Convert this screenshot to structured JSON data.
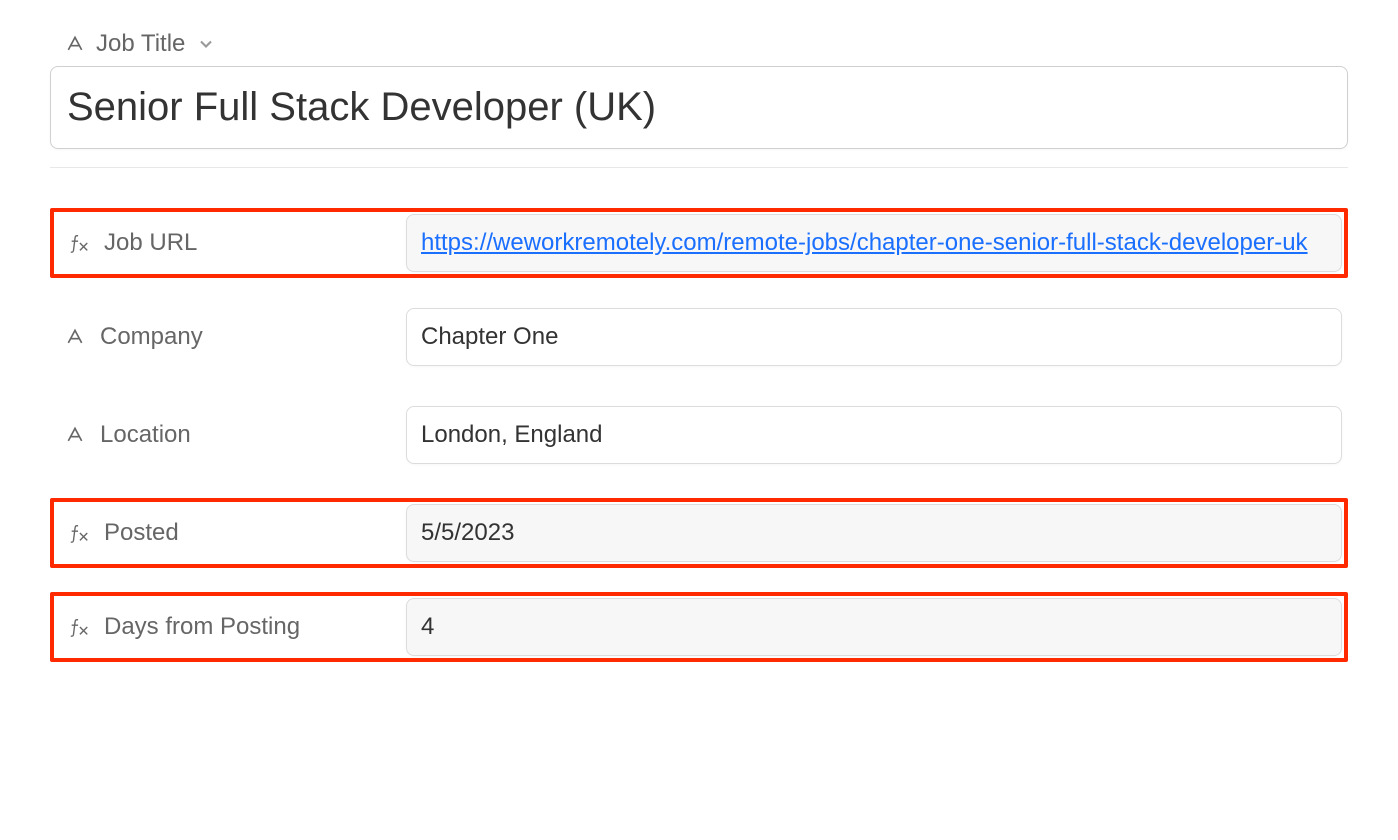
{
  "colors": {
    "highlight_border": "#ff2a00",
    "link": "#1a6fff",
    "text_primary": "#333333",
    "text_secondary": "#666666",
    "border": "#dcdcdc",
    "formula_bg": "#f7f7f7",
    "divider": "#e8e8e8"
  },
  "header": {
    "field_label": "Job Title",
    "field_type_icon": "text-icon",
    "value": "Senior Full Stack Developer (UK)"
  },
  "fields": [
    {
      "label": "Job URL",
      "type": "formula",
      "icon": "formula-icon",
      "value": "https://weworkremotely.com/remote-jobs/chapter-one-senior-full-stack-developer-uk",
      "is_link": true,
      "highlighted": true
    },
    {
      "label": "Company",
      "type": "text",
      "icon": "text-icon",
      "value": "Chapter One",
      "is_link": false,
      "highlighted": false
    },
    {
      "label": "Location",
      "type": "text",
      "icon": "text-icon",
      "value": "London, England",
      "is_link": false,
      "highlighted": false
    },
    {
      "label": "Posted",
      "type": "formula",
      "icon": "formula-icon",
      "value": "5/5/2023",
      "is_link": false,
      "highlighted": true
    },
    {
      "label": "Days from Posting",
      "type": "formula",
      "icon": "formula-icon",
      "value": "4",
      "is_link": false,
      "highlighted": true
    }
  ]
}
